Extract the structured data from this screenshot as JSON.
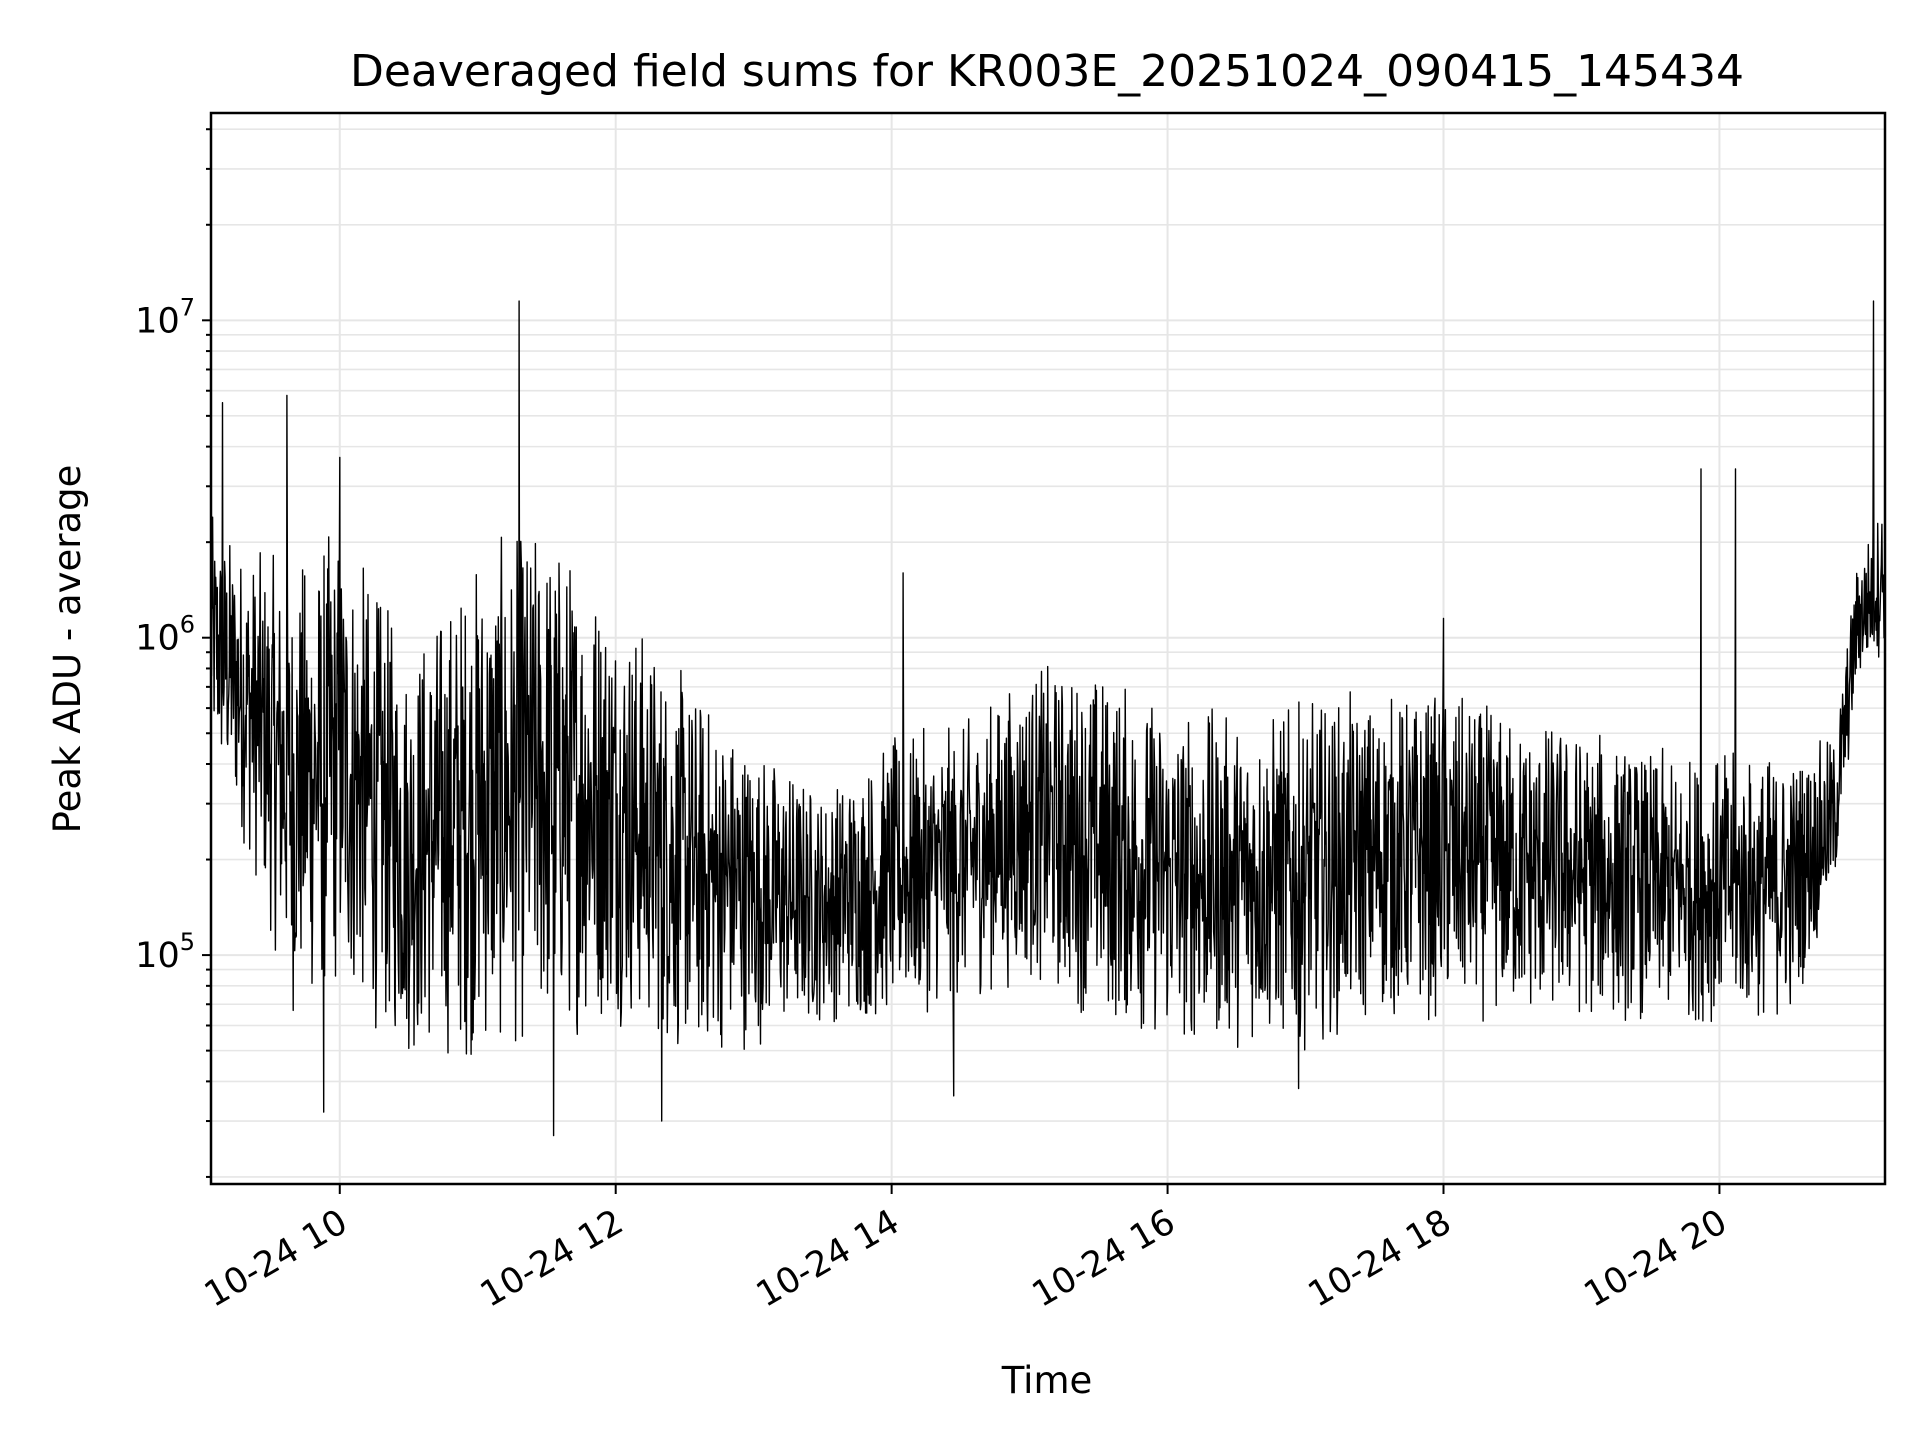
{
  "chart_data": {
    "type": "line",
    "title": "Deaveraged field sums for KR003E_20251024_090415_145434",
    "xlabel": "Time",
    "ylabel": "Peak ADU - average",
    "x_range": [
      "2025-10-24 09:04",
      "2025-10-24 21:12"
    ],
    "y_scale": "log",
    "ylim": [
      19000,
      45000000
    ],
    "grid": true,
    "line_color": "#000000",
    "grid_color": "#e6e6e6",
    "x_ticks": [
      {
        "value": "2025-10-24 10:00",
        "label": "10-24 10"
      },
      {
        "value": "2025-10-24 12:00",
        "label": "10-24 12"
      },
      {
        "value": "2025-10-24 14:00",
        "label": "10-24 14"
      },
      {
        "value": "2025-10-24 16:00",
        "label": "10-24 16"
      },
      {
        "value": "2025-10-24 18:00",
        "label": "10-24 18"
      },
      {
        "value": "2025-10-24 20:00",
        "label": "10-24 20"
      }
    ],
    "y_ticks": [
      {
        "value": 100000,
        "base": "10",
        "exp": "5"
      },
      {
        "value": 1000000,
        "base": "10",
        "exp": "6"
      },
      {
        "value": 10000000,
        "base": "10",
        "exp": "7"
      }
    ],
    "series": [
      {
        "style": "noisy-envelope",
        "points": [
          {
            "t": "2025-10-24 09:04",
            "low": 400000,
            "high": 2500000
          },
          {
            "t": "2025-10-24 09:20",
            "low": 200000,
            "high": 2000000
          },
          {
            "t": "2025-10-24 09:40",
            "low": 60000,
            "high": 1800000
          },
          {
            "t": "2025-10-24 10:00",
            "low": 70000,
            "high": 2500000
          },
          {
            "t": "2025-10-24 10:30",
            "low": 45000,
            "high": 1000000
          },
          {
            "t": "2025-10-24 11:00",
            "low": 45000,
            "high": 2000000
          },
          {
            "t": "2025-10-24 11:30",
            "low": 50000,
            "high": 2500000
          },
          {
            "t": "2025-10-24 12:00",
            "low": 60000,
            "high": 1500000
          },
          {
            "t": "2025-10-24 12:30",
            "low": 45000,
            "high": 800000
          },
          {
            "t": "2025-10-24 13:00",
            "low": 50000,
            "high": 500000
          },
          {
            "t": "2025-10-24 13:30",
            "low": 60000,
            "high": 350000
          },
          {
            "t": "2025-10-24 14:00",
            "low": 60000,
            "high": 500000
          },
          {
            "t": "2025-10-24 14:30",
            "low": 70000,
            "high": 550000
          },
          {
            "t": "2025-10-24 15:00",
            "low": 80000,
            "high": 850000
          },
          {
            "t": "2025-10-24 15:30",
            "low": 60000,
            "high": 850000
          },
          {
            "t": "2025-10-24 16:00",
            "low": 50000,
            "high": 650000
          },
          {
            "t": "2025-10-24 16:30",
            "low": 50000,
            "high": 600000
          },
          {
            "t": "2025-10-24 17:00",
            "low": 50000,
            "high": 650000
          },
          {
            "t": "2025-10-24 17:30",
            "low": 60000,
            "high": 700000
          },
          {
            "t": "2025-10-24 18:00",
            "low": 60000,
            "high": 700000
          },
          {
            "t": "2025-10-24 18:30",
            "low": 60000,
            "high": 600000
          },
          {
            "t": "2025-10-24 19:00",
            "low": 60000,
            "high": 550000
          },
          {
            "t": "2025-10-24 19:30",
            "low": 60000,
            "high": 450000
          },
          {
            "t": "2025-10-24 20:00",
            "low": 60000,
            "high": 450000
          },
          {
            "t": "2025-10-24 20:30",
            "low": 60000,
            "high": 450000
          },
          {
            "t": "2025-10-24 20:50",
            "low": 150000,
            "high": 500000
          },
          {
            "t": "2025-10-24 21:00",
            "low": 700000,
            "high": 1800000
          },
          {
            "t": "2025-10-24 21:12",
            "low": 900000,
            "high": 3000000
          }
        ],
        "spikes": [
          {
            "t": "2025-10-24 09:09",
            "value": 5500000
          },
          {
            "t": "2025-10-24 09:37",
            "value": 5800000
          },
          {
            "t": "2025-10-24 09:53",
            "value": 32000
          },
          {
            "t": "2025-10-24 10:00",
            "value": 3700000
          },
          {
            "t": "2025-10-24 11:18",
            "value": 11500000
          },
          {
            "t": "2025-10-24 11:33",
            "value": 27000
          },
          {
            "t": "2025-10-24 12:20",
            "value": 30000
          },
          {
            "t": "2025-10-24 14:05",
            "value": 1600000
          },
          {
            "t": "2025-10-24 14:27",
            "value": 36000
          },
          {
            "t": "2025-10-24 16:57",
            "value": 38000
          },
          {
            "t": "2025-10-24 18:00",
            "value": 1150000
          },
          {
            "t": "2025-10-24 19:52",
            "value": 3400000
          },
          {
            "t": "2025-10-24 20:07",
            "value": 3400000
          },
          {
            "t": "2025-10-24 21:07",
            "value": 11500000
          }
        ]
      }
    ]
  }
}
